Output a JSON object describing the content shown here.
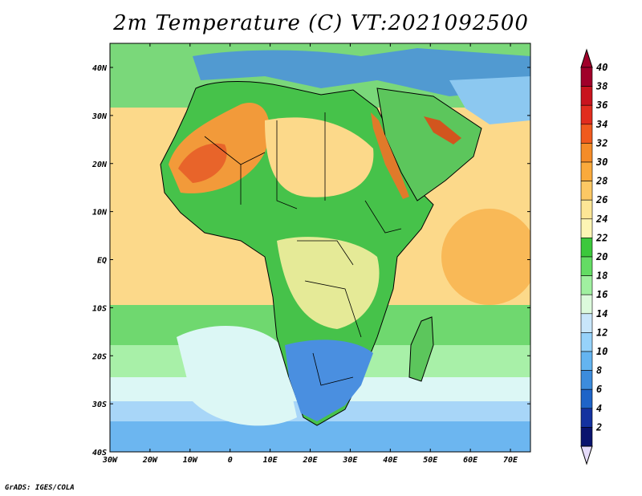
{
  "title": "2m Temperature (C) VT:2021092500",
  "credit": "GrADS: IGES/COLA",
  "map": {
    "lon_range": [
      -30,
      75
    ],
    "lat_range": [
      -40,
      45
    ],
    "lon_ticks": [
      "30W",
      "20W",
      "10W",
      "0",
      "10E",
      "20E",
      "30E",
      "40E",
      "50E",
      "60E",
      "70E"
    ],
    "lat_ticks": [
      "40N",
      "30N",
      "20N",
      "10N",
      "EQ",
      "10S",
      "20S",
      "30S",
      "40S"
    ]
  },
  "legend": {
    "labels": [
      "40",
      "38",
      "36",
      "34",
      "32",
      "30",
      "28",
      "26",
      "24",
      "22",
      "20",
      "18",
      "16",
      "14",
      "12",
      "10",
      "8",
      "6",
      "4",
      "2"
    ],
    "colors": [
      "#a0002a",
      "#c8141e",
      "#e12d1e",
      "#f05a1e",
      "#f58c28",
      "#faaa3c",
      "#fcc864",
      "#fde696",
      "#fdf5b4",
      "#3cc83c",
      "#64dc64",
      "#a0f0a0",
      "#dcfadc",
      "#c8e6fa",
      "#96d2fa",
      "#64b4f0",
      "#3c8cdc",
      "#1e64c8",
      "#1432a0",
      "#0a146e"
    ],
    "top_color": "#a0002a",
    "bottom_color": "#e6dcfa"
  }
}
